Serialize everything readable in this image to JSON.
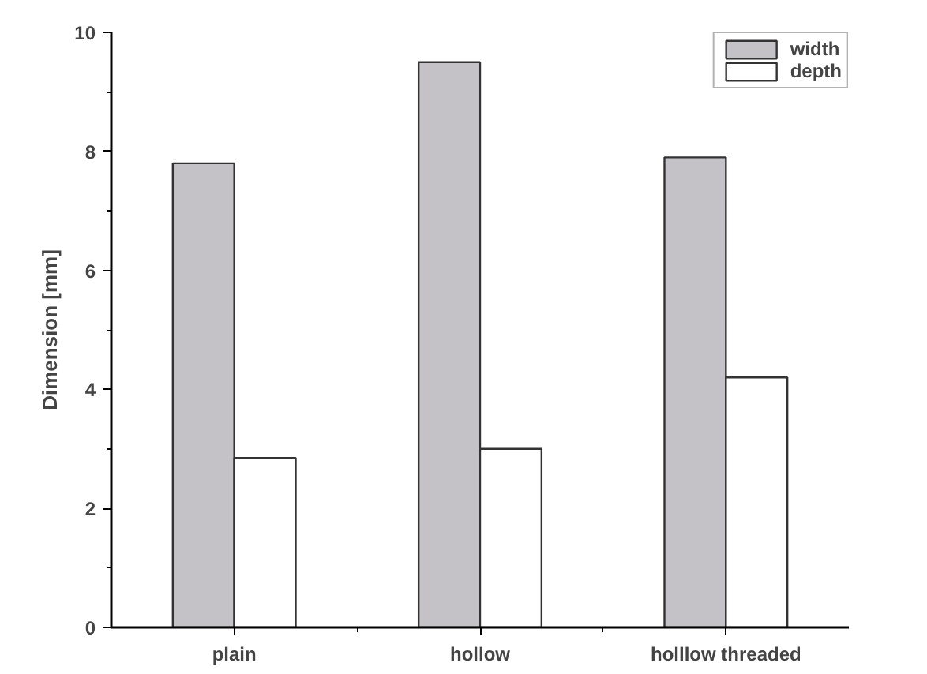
{
  "chart_data": {
    "type": "bar",
    "ylabel": "Dimension [mm]",
    "categories": [
      "plain",
      "hollow",
      "holllow threaded"
    ],
    "series": [
      {
        "name": "width",
        "color": "#c4c2c6",
        "values": [
          7.8,
          9.5,
          7.9
        ]
      },
      {
        "name": "depth",
        "color": "#ffffff",
        "values": [
          2.85,
          3.0,
          4.2
        ]
      }
    ],
    "ylim": [
      0,
      10
    ],
    "yticks": [
      0,
      2,
      4,
      6,
      8,
      10
    ],
    "grid": false,
    "legend": "top right"
  }
}
